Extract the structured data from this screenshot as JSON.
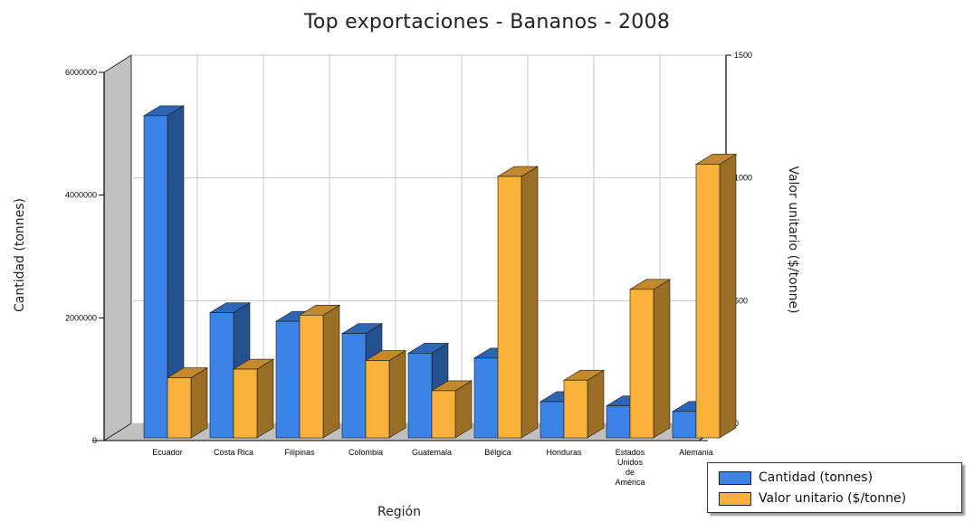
{
  "chart_data": {
    "type": "bar",
    "title": "Top exportaciones - Bananos - 2008",
    "xlabel": "Región",
    "ylabel": "Cantidad (tonnes)",
    "y2label": "Valor unitario  ($/tonne)",
    "categories": [
      "Ecuador",
      "Costa Rica",
      "Filipinas",
      "Colombia",
      "Guatemala",
      "Bélgica",
      "Honduras",
      "Estados Unidos de América",
      "Alemania"
    ],
    "series": [
      {
        "name": "Cantidad (tonnes)",
        "axis": "left",
        "color": "#3b83e6",
        "values": [
          5250000,
          2040000,
          1900000,
          1700000,
          1380000,
          1300000,
          590000,
          520000,
          430000
        ]
      },
      {
        "name": "Valor unitario  ($/tonne)",
        "axis": "right",
        "color": "#f9b13a",
        "values": [
          245,
          280,
          500,
          315,
          192,
          1065,
          235,
          605,
          1115
        ]
      }
    ],
    "ylim": [
      0,
      6000000
    ],
    "y2lim": [
      0,
      1500
    ],
    "yticks": [
      {
        "value": 0,
        "label": "0"
      },
      {
        "value": 2000000,
        "label": "2000000"
      },
      {
        "value": 4000000,
        "label": "4000000"
      },
      {
        "value": 6000000,
        "label": "6000000"
      }
    ],
    "y2ticks": [
      {
        "value": 0,
        "label": "0"
      },
      {
        "value": 500,
        "label": "500"
      },
      {
        "value": 1000,
        "label": "1000"
      },
      {
        "value": 1500,
        "label": "1500"
      }
    ],
    "grid": true,
    "legend_position": "bottom-right",
    "style": "3d"
  }
}
